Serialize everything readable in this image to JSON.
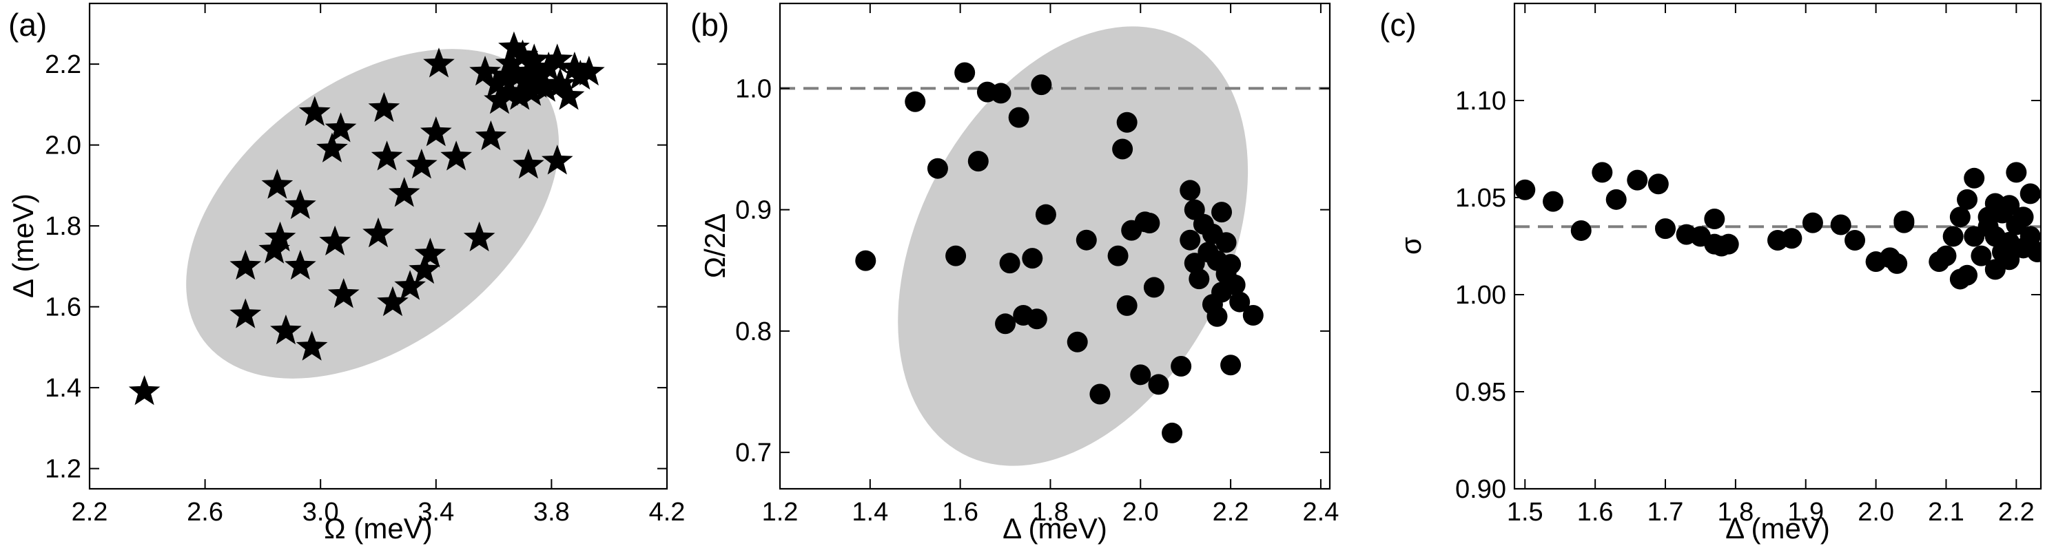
{
  "figure": {
    "colors": {
      "ellipse": "#cccccc",
      "marker": "#000000",
      "reference_line": "#7f7f7f"
    }
  },
  "chart_data": [
    {
      "panel": "(a)",
      "type": "scatter",
      "marker": "star",
      "xlabel": "Ω (meV)",
      "ylabel": "Δ (meV)",
      "xlim": [
        2.2,
        4.2
      ],
      "ylim": [
        1.15,
        2.35
      ],
      "xticks": [
        "2.2",
        "2.6",
        "3.0",
        "3.4",
        "3.8",
        "4.2"
      ],
      "yticks": [
        "1.2",
        "1.4",
        "1.6",
        "1.8",
        "2.0",
        "2.2"
      ],
      "xticks_values": [
        2.2,
        2.6,
        3.0,
        3.4,
        3.8,
        4.2
      ],
      "yticks_values": [
        1.2,
        1.4,
        1.6,
        1.8,
        2.0,
        2.2
      ],
      "ellipse": {
        "cx": 3.18,
        "cy": 1.83,
        "rx": 1.18,
        "ry": 0.26,
        "angle_deg": 37
      },
      "points": [
        [
          2.39,
          1.39
        ],
        [
          2.74,
          1.58
        ],
        [
          2.74,
          1.7
        ],
        [
          2.84,
          1.74
        ],
        [
          2.86,
          1.77
        ],
        [
          2.85,
          1.9
        ],
        [
          2.88,
          1.54
        ],
        [
          2.93,
          1.7
        ],
        [
          2.93,
          1.85
        ],
        [
          2.97,
          1.5
        ],
        [
          2.98,
          2.08
        ],
        [
          3.04,
          1.99
        ],
        [
          3.05,
          1.76
        ],
        [
          3.07,
          2.04
        ],
        [
          3.08,
          1.63
        ],
        [
          3.2,
          1.78
        ],
        [
          3.22,
          2.09
        ],
        [
          3.23,
          1.97
        ],
        [
          3.25,
          1.61
        ],
        [
          3.29,
          1.88
        ],
        [
          3.31,
          1.65
        ],
        [
          3.35,
          1.95
        ],
        [
          3.36,
          1.69
        ],
        [
          3.38,
          1.73
        ],
        [
          3.4,
          2.03
        ],
        [
          3.41,
          2.2
        ],
        [
          3.47,
          1.97
        ],
        [
          3.55,
          1.77
        ],
        [
          3.57,
          2.18
        ],
        [
          3.59,
          2.02
        ],
        [
          3.61,
          2.15
        ],
        [
          3.62,
          2.11
        ],
        [
          3.64,
          2.17
        ],
        [
          3.65,
          2.13
        ],
        [
          3.66,
          2.2
        ],
        [
          3.67,
          2.24
        ],
        [
          3.68,
          2.17
        ],
        [
          3.69,
          2.12
        ],
        [
          3.7,
          2.22
        ],
        [
          3.71,
          2.16
        ],
        [
          3.72,
          2.18
        ],
        [
          3.73,
          2.13
        ],
        [
          3.74,
          2.21
        ],
        [
          3.75,
          2.15
        ],
        [
          3.75,
          2.19
        ],
        [
          3.76,
          2.17
        ],
        [
          3.78,
          2.14
        ],
        [
          3.79,
          2.19
        ],
        [
          3.82,
          2.21
        ],
        [
          3.83,
          2.15
        ],
        [
          3.86,
          2.12
        ],
        [
          3.88,
          2.19
        ],
        [
          3.9,
          2.17
        ],
        [
          3.93,
          2.18
        ],
        [
          3.72,
          1.95
        ],
        [
          3.82,
          1.96
        ]
      ]
    },
    {
      "panel": "(b)",
      "type": "scatter",
      "marker": "circle",
      "xlabel": "Δ (meV)",
      "ylabel": "Ω/2Δ",
      "xlim": [
        1.2,
        2.42
      ],
      "ylim": [
        0.67,
        1.07
      ],
      "xticks": [
        "1.2",
        "1.4",
        "1.6",
        "1.8",
        "2.0",
        "2.2",
        "2.4"
      ],
      "yticks": [
        "0.7",
        "0.8",
        "0.9",
        "1.0"
      ],
      "xticks_values": [
        1.2,
        1.4,
        1.6,
        1.8,
        2.0,
        2.2,
        2.4
      ],
      "yticks_values": [
        0.7,
        0.8,
        0.9,
        1.0
      ],
      "reference_line_y": 1.0,
      "ellipse": {
        "cx": 1.85,
        "cy": 0.87,
        "rx": 0.55,
        "ry": 0.155,
        "angle_deg": -28
      },
      "points": [
        [
          1.39,
          0.858
        ],
        [
          1.5,
          0.989
        ],
        [
          1.55,
          0.934
        ],
        [
          1.59,
          0.862
        ],
        [
          1.61,
          1.013
        ],
        [
          1.64,
          0.94
        ],
        [
          1.66,
          0.997
        ],
        [
          1.69,
          0.996
        ],
        [
          1.7,
          0.806
        ],
        [
          1.71,
          0.856
        ],
        [
          1.73,
          0.976
        ],
        [
          1.74,
          0.813
        ],
        [
          1.76,
          0.86
        ],
        [
          1.77,
          0.81
        ],
        [
          1.78,
          1.003
        ],
        [
          1.79,
          0.896
        ],
        [
          1.86,
          0.791
        ],
        [
          1.88,
          0.875
        ],
        [
          1.91,
          0.748
        ],
        [
          1.95,
          0.862
        ],
        [
          1.96,
          0.95
        ],
        [
          1.97,
          0.972
        ],
        [
          1.97,
          0.821
        ],
        [
          1.98,
          0.883
        ],
        [
          2.0,
          0.764
        ],
        [
          2.01,
          0.89
        ],
        [
          2.02,
          0.889
        ],
        [
          2.03,
          0.836
        ],
        [
          2.04,
          0.756
        ],
        [
          2.07,
          0.716
        ],
        [
          2.09,
          0.771
        ],
        [
          2.11,
          0.916
        ],
        [
          2.11,
          0.875
        ],
        [
          2.12,
          0.856
        ],
        [
          2.12,
          0.9
        ],
        [
          2.13,
          0.843
        ],
        [
          2.14,
          0.888
        ],
        [
          2.15,
          0.865
        ],
        [
          2.16,
          0.822
        ],
        [
          2.16,
          0.88
        ],
        [
          2.17,
          0.858
        ],
        [
          2.17,
          0.812
        ],
        [
          2.18,
          0.898
        ],
        [
          2.18,
          0.832
        ],
        [
          2.19,
          0.873
        ],
        [
          2.19,
          0.847
        ],
        [
          2.2,
          0.855
        ],
        [
          2.2,
          0.772
        ],
        [
          2.21,
          0.838
        ],
        [
          2.22,
          0.824
        ],
        [
          2.25,
          0.813
        ]
      ]
    },
    {
      "panel": "(c)",
      "type": "scatter",
      "marker": "circle",
      "xlabel": "Δ (meV)",
      "ylabel": "σ",
      "xlim": [
        1.485,
        2.235
      ],
      "ylim": [
        0.9,
        1.15
      ],
      "xticks": [
        "1.5",
        "1.6",
        "1.7",
        "1.8",
        "1.9",
        "2.0",
        "2.1",
        "2.2"
      ],
      "yticks": [
        "0.90",
        "0.95",
        "1.00",
        "1.05",
        "1.10"
      ],
      "xticks_values": [
        1.5,
        1.6,
        1.7,
        1.8,
        1.9,
        2.0,
        2.1,
        2.2
      ],
      "yticks_values": [
        0.9,
        0.95,
        1.0,
        1.05,
        1.1
      ],
      "reference_line_y": 1.035,
      "points": [
        [
          1.5,
          1.054
        ],
        [
          1.54,
          1.048
        ],
        [
          1.58,
          1.033
        ],
        [
          1.61,
          1.063
        ],
        [
          1.63,
          1.049
        ],
        [
          1.66,
          1.059
        ],
        [
          1.69,
          1.057
        ],
        [
          1.7,
          1.034
        ],
        [
          1.73,
          1.031
        ],
        [
          1.75,
          1.03
        ],
        [
          1.77,
          1.026
        ],
        [
          1.77,
          1.039
        ],
        [
          1.78,
          1.025
        ],
        [
          1.79,
          1.026
        ],
        [
          1.86,
          1.028
        ],
        [
          1.88,
          1.029
        ],
        [
          1.91,
          1.037
        ],
        [
          1.95,
          1.036
        ],
        [
          1.97,
          1.028
        ],
        [
          2.0,
          1.017
        ],
        [
          2.02,
          1.019
        ],
        [
          2.03,
          1.016
        ],
        [
          2.04,
          1.037
        ],
        [
          2.04,
          1.038
        ],
        [
          2.09,
          1.017
        ],
        [
          2.1,
          1.02
        ],
        [
          2.11,
          1.03
        ],
        [
          2.12,
          1.008
        ],
        [
          2.12,
          1.04
        ],
        [
          2.13,
          1.049
        ],
        [
          2.13,
          1.01
        ],
        [
          2.14,
          1.03
        ],
        [
          2.14,
          1.06
        ],
        [
          2.15,
          1.02
        ],
        [
          2.16,
          1.04
        ],
        [
          2.16,
          1.035
        ],
        [
          2.17,
          1.013
        ],
        [
          2.17,
          1.03
        ],
        [
          2.17,
          1.047
        ],
        [
          2.18,
          1.022
        ],
        [
          2.18,
          1.042
        ],
        [
          2.19,
          1.046
        ],
        [
          2.19,
          1.027
        ],
        [
          2.19,
          1.018
        ],
        [
          2.2,
          1.036
        ],
        [
          2.2,
          1.063
        ],
        [
          2.21,
          1.024
        ],
        [
          2.21,
          1.04
        ],
        [
          2.22,
          1.052
        ],
        [
          2.22,
          1.03
        ],
        [
          2.23,
          1.022
        ]
      ]
    }
  ]
}
